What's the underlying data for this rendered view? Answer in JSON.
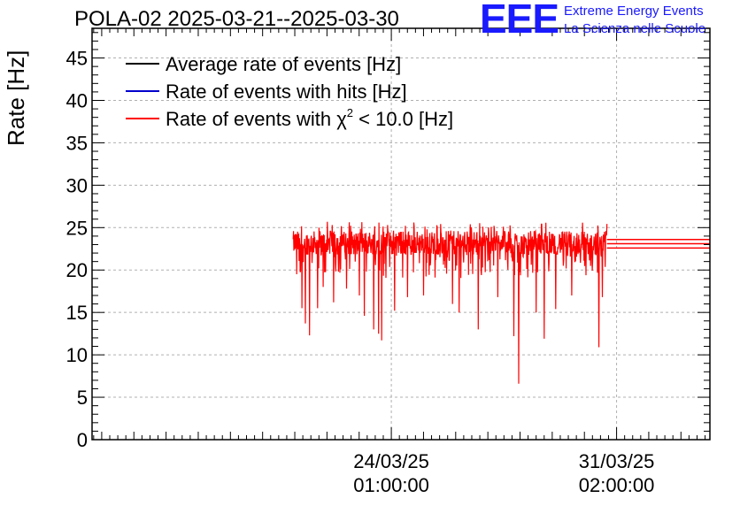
{
  "header": {
    "title": "POLA-02 2025-03-21--2025-03-30"
  },
  "logo": {
    "mark": "EEE",
    "line1": "Extreme Energy Events",
    "line2": "La Scienza nelle Scuole"
  },
  "chart_data": {
    "type": "line",
    "title": "POLA-02 2025-03-21--2025-03-30",
    "xlabel": "",
    "ylabel": "Rate [Hz]",
    "ylim": [
      0,
      48.5
    ],
    "yticks": [
      0,
      5,
      10,
      15,
      20,
      25,
      30,
      35,
      40,
      45
    ],
    "yticklabels": [
      "0",
      "5",
      "10",
      "15",
      "20",
      "25",
      "30",
      "35",
      "40",
      "45"
    ],
    "xlim_days": [
      -9.3,
      9.9
    ],
    "xticks": [
      {
        "day": 0,
        "label_date": "24/03/25",
        "label_time": "01:00:00"
      },
      {
        "day": 7,
        "label_date": "31/03/25",
        "label_time": "02:00:00"
      }
    ],
    "grid": true,
    "legend": {
      "position": "top-left",
      "entries": [
        {
          "label": "Average rate of events [Hz]",
          "color": "#000000"
        },
        {
          "label": "Rate of events with hits [Hz]",
          "color": "#0000cc"
        },
        {
          "label_prefix": "Rate of events with ",
          "label_symbol": "χ",
          "label_sup": "2",
          "label_suffix": " < 10.0 [Hz]",
          "color": "#ff0000"
        }
      ]
    },
    "series": [
      {
        "name": "Rate of events with χ2 < 10.0 [Hz]",
        "color": "#ff0000",
        "x_start_day": -3.05,
        "x_end_day": 6.7,
        "flat_end_day": 9.9,
        "flat_values": [
          22.6,
          23.1,
          23.6
        ],
        "baseline_low": 21.8,
        "baseline_high": 24.6,
        "spikes": [
          {
            "x": -2.95,
            "y": 19.5
          },
          {
            "x": -2.78,
            "y": 15.5
          },
          {
            "x": -2.68,
            "y": 13.7
          },
          {
            "x": -2.55,
            "y": 12.3
          },
          {
            "x": -2.3,
            "y": 15.5
          },
          {
            "x": -2.12,
            "y": 18.0
          },
          {
            "x": -1.8,
            "y": 16.2
          },
          {
            "x": -1.4,
            "y": 17.8
          },
          {
            "x": -1.0,
            "y": 17.0
          },
          {
            "x": -0.85,
            "y": 14.6
          },
          {
            "x": -0.55,
            "y": 13.0
          },
          {
            "x": -0.4,
            "y": 12.5
          },
          {
            "x": -0.3,
            "y": 11.7
          },
          {
            "x": 0.1,
            "y": 15.2
          },
          {
            "x": 0.5,
            "y": 16.8
          },
          {
            "x": 1.0,
            "y": 17.0
          },
          {
            "x": 1.9,
            "y": 16.0
          },
          {
            "x": 2.1,
            "y": 15.0
          },
          {
            "x": 2.7,
            "y": 13.0
          },
          {
            "x": 3.3,
            "y": 16.8
          },
          {
            "x": 3.8,
            "y": 12.2
          },
          {
            "x": 3.95,
            "y": 6.6
          },
          {
            "x": 4.5,
            "y": 15.0
          },
          {
            "x": 4.75,
            "y": 11.9
          },
          {
            "x": 5.1,
            "y": 15.4
          },
          {
            "x": 5.6,
            "y": 17.0
          },
          {
            "x": 6.45,
            "y": 10.9
          },
          {
            "x": 6.55,
            "y": 16.8
          }
        ]
      }
    ]
  }
}
